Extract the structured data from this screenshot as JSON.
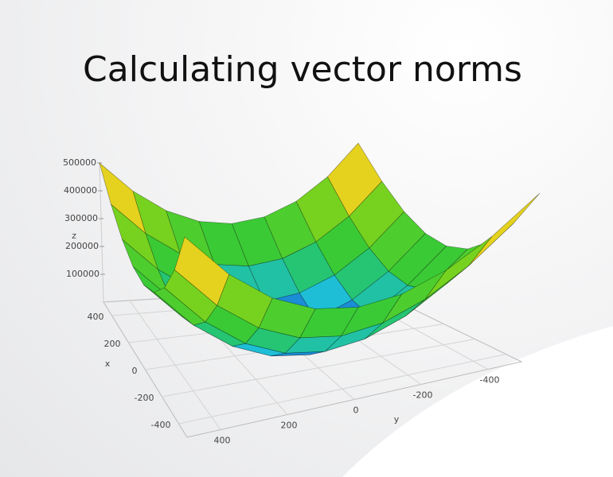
{
  "chart_data": {
    "type": "surface",
    "title": "Calculating vector norms",
    "xlabel": "x",
    "ylabel": "y",
    "zlabel": "z",
    "x": [
      -500,
      -375,
      -250,
      -125,
      0,
      125,
      250,
      375,
      500
    ],
    "y": [
      -500,
      -375,
      -250,
      -125,
      0,
      125,
      250,
      375,
      500
    ],
    "z": [
      [
        500000,
        390625,
        312500,
        265625,
        250000,
        265625,
        312500,
        390625,
        500000
      ],
      [
        390625,
        281250,
        203125,
        156250,
        140625,
        156250,
        203125,
        281250,
        390625
      ],
      [
        312500,
        203125,
        125000,
        78125,
        62500,
        78125,
        125000,
        203125,
        312500
      ],
      [
        265625,
        156250,
        78125,
        31250,
        15625,
        31250,
        78125,
        156250,
        265625
      ],
      [
        250000,
        140625,
        62500,
        15625,
        0,
        15625,
        62500,
        140625,
        250000
      ],
      [
        265625,
        156250,
        78125,
        31250,
        15625,
        31250,
        78125,
        156250,
        265625
      ],
      [
        312500,
        203125,
        125000,
        78125,
        62500,
        78125,
        125000,
        203125,
        312500
      ],
      [
        390625,
        281250,
        203125,
        156250,
        140625,
        156250,
        203125,
        281250,
        390625
      ],
      [
        500000,
        390625,
        312500,
        265625,
        250000,
        265625,
        312500,
        390625,
        500000
      ]
    ],
    "xlim": [
      -500,
      500
    ],
    "ylim": [
      -500,
      500
    ],
    "zlim": [
      0,
      500000
    ],
    "xticks": [
      400,
      200,
      0,
      -200,
      -400
    ],
    "yticks": [
      400,
      200,
      0,
      -200,
      -400
    ],
    "zticks": [
      100000,
      200000,
      300000,
      400000,
      500000
    ],
    "colormap": "jet",
    "grid": true
  }
}
